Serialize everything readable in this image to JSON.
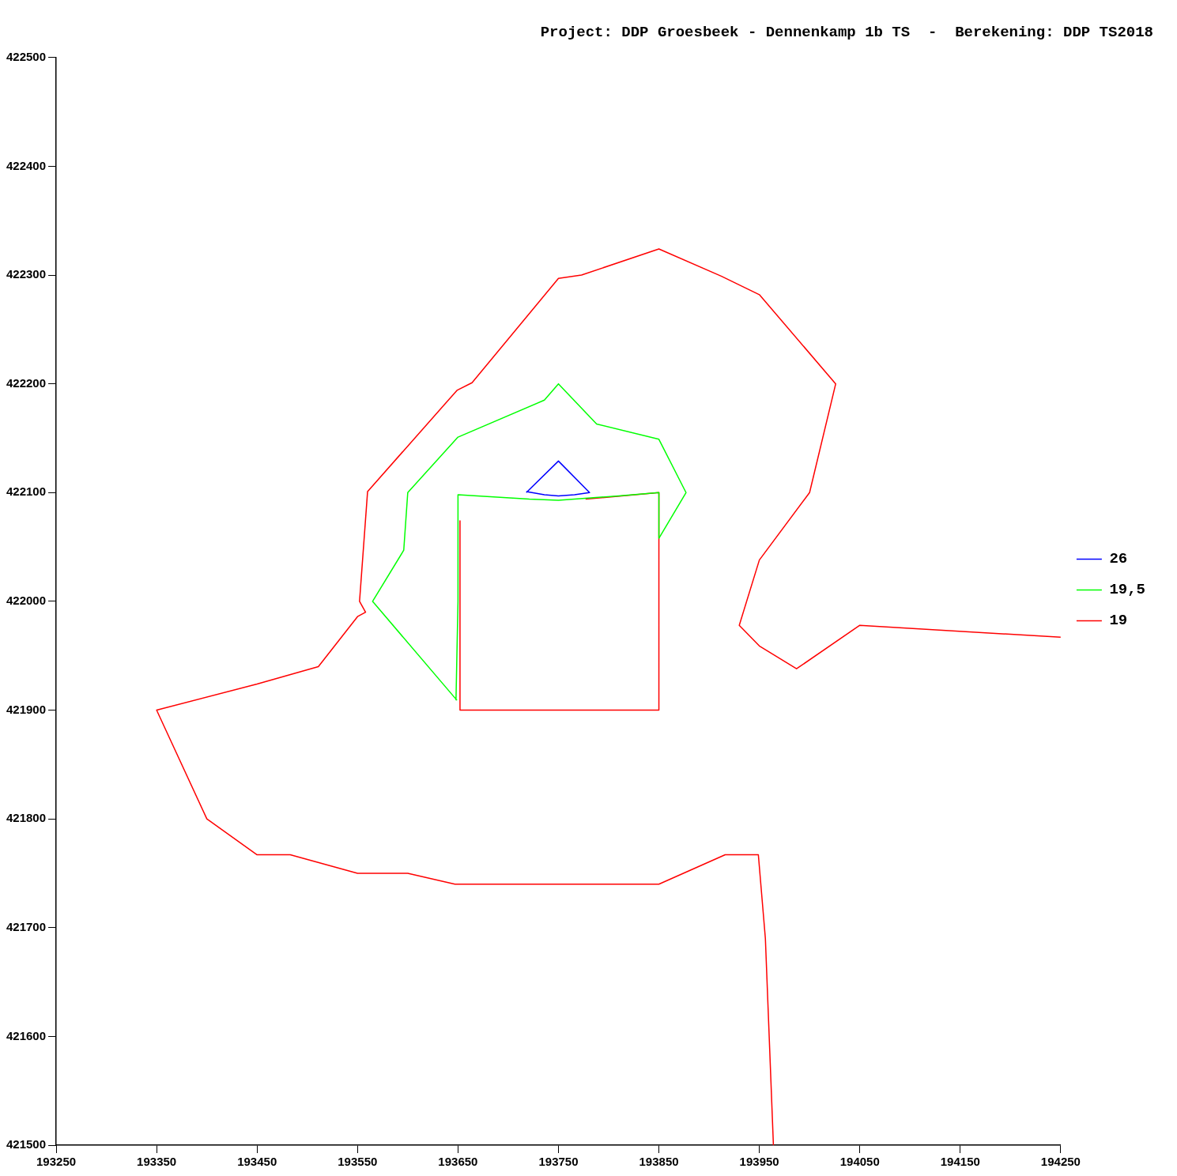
{
  "chart_data": {
    "type": "line",
    "title": "Project: DDP Groesbeek - Dennenkamp 1b TS  -  Berekening: DDP TS2018",
    "xlim": [
      193250,
      194250
    ],
    "xticks": [
      193250,
      193350,
      193450,
      193550,
      193650,
      193750,
      193850,
      193950,
      194050,
      194150,
      194250
    ],
    "ylim": [
      421500,
      422500
    ],
    "yticks": [
      421500,
      421600,
      421700,
      421800,
      421900,
      422000,
      422100,
      422200,
      422300,
      422400,
      422500
    ],
    "grid": false,
    "legend": "right",
    "marker": "none",
    "line_style": "solid",
    "series": [
      {
        "name": "26",
        "color": "#0000ff",
        "x": [
          193718,
          193750,
          193781,
          193766,
          193750,
          193736,
          193718
        ],
        "values": [
          422100,
          422129,
          422100,
          422098,
          422097,
          422098,
          422101
        ]
      },
      {
        "name": "19,5",
        "color": "#00ff00",
        "x": [
          193649,
          193565,
          193596,
          193600,
          193650,
          193736,
          193750,
          193788,
          193850,
          193877,
          193850,
          193850,
          193810,
          193750,
          193721,
          193650,
          193650,
          193648
        ],
        "values": [
          421909,
          422000,
          422047,
          422100,
          422151,
          422185,
          422200,
          422163,
          422149,
          422100,
          422058,
          422100,
          422097,
          422093,
          422094,
          422098,
          422000,
          421909
        ]
      },
      {
        "name": "19",
        "color": "#ff0000",
        "x": [
          194250,
          194050,
          193987,
          193950,
          193930,
          193950,
          194000,
          194026,
          193950,
          193912,
          193850,
          193773,
          193750,
          193664,
          193649,
          193560,
          193552,
          193558,
          193550,
          193511,
          193450,
          193350,
          193400,
          193450,
          193483,
          193550,
          193600,
          193647,
          193850,
          193916,
          193949,
          193956,
          193964,
          null,
          193652,
          193652,
          193850,
          193850,
          193777
        ],
        "values": [
          421967,
          421978,
          421938,
          421959,
          421978,
          422038,
          422100,
          422200,
          422282,
          422299,
          422324,
          422300,
          422297,
          422201,
          422194,
          422101,
          422000,
          421990,
          421986,
          421940,
          421924,
          421900,
          421800,
          421767,
          421767,
          421750,
          421750,
          421740,
          421740,
          421767,
          421767,
          421690,
          421500,
          null,
          422074,
          421900,
          421900,
          422100,
          422094
        ]
      }
    ]
  }
}
